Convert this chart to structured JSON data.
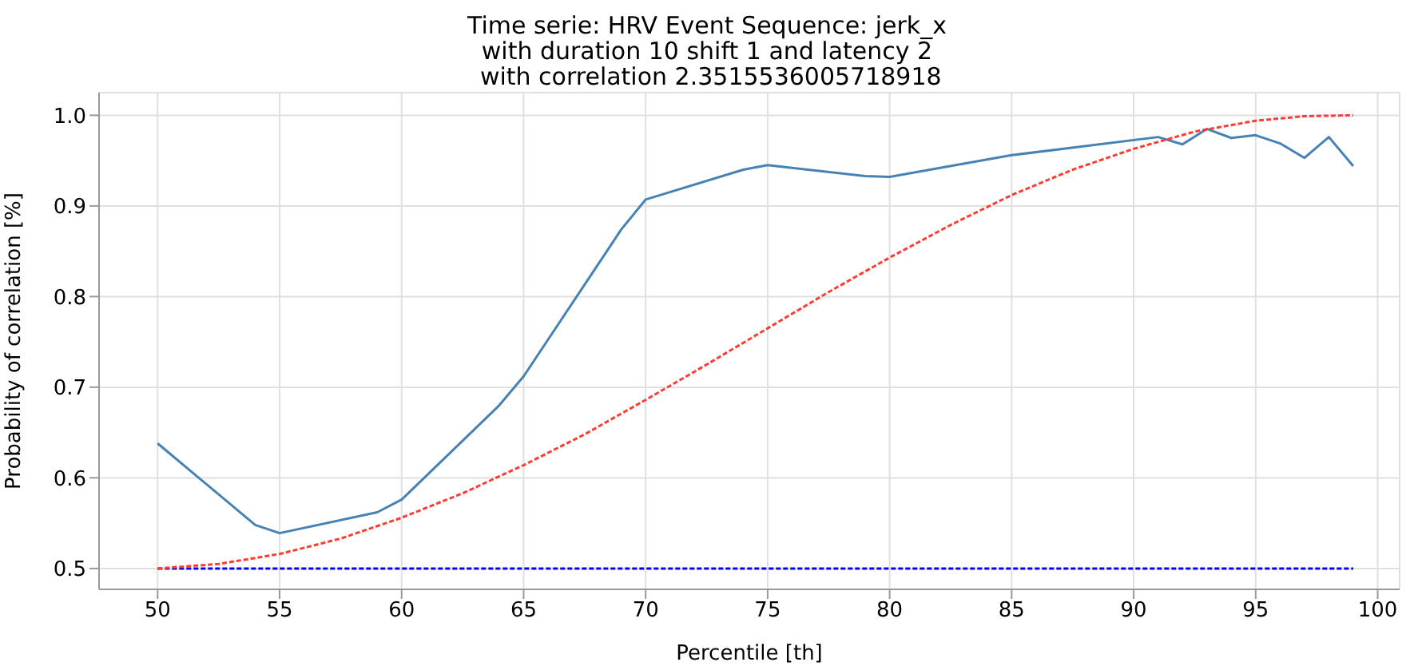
{
  "chart_data": {
    "type": "line",
    "title": "Time serie: HRV Event Sequence: jerk_x\nwith duration 10 shift 1 and latency 2\n with correlation 2.3515536005718918",
    "xlabel": "Percentile [th]",
    "ylabel": "Probability of correlation [%]",
    "xlim": [
      47.6,
      100.9
    ],
    "xticks": [
      50,
      55,
      60,
      65,
      70,
      75,
      80,
      85,
      90,
      95,
      100
    ],
    "ylim": [
      0.477,
      1.025
    ],
    "yticks": [
      0.5,
      0.6,
      0.7,
      0.8,
      0.9,
      {
        "value": 1,
        "label": "1.0"
      }
    ],
    "grid": true,
    "series": [
      {
        "color": "#4682b4",
        "line_style": "solid",
        "x": [
          50,
          54,
          55,
          59,
          60,
          64,
          65,
          69,
          70,
          74,
          75,
          79,
          80,
          85,
          91,
          92,
          93,
          94,
          95,
          96,
          97,
          98,
          99
        ],
        "values": [
          0.638,
          0.548,
          0.539,
          0.562,
          0.576,
          0.68,
          0.712,
          0.874,
          0.907,
          0.94,
          0.945,
          0.933,
          0.932,
          0.956,
          0.976,
          0.968,
          0.985,
          0.975,
          0.978,
          0.969,
          0.953,
          0.976,
          0.944
        ]
      },
      {
        "color": "#0000ff",
        "line_style": "dashed",
        "x": [
          50,
          99
        ],
        "values": [
          0.5,
          0.5
        ]
      },
      {
        "color": "#ff3c32",
        "line_style": "dashed",
        "x": [
          50,
          52.5,
          55,
          57.5,
          60,
          62.5,
          65,
          67.5,
          70,
          72.5,
          75,
          77.5,
          80,
          82.5,
          85,
          87.5,
          90,
          92.5,
          95,
          97,
          99
        ],
        "values": [
          0.5,
          0.505,
          0.516,
          0.533,
          0.556,
          0.583,
          0.614,
          0.648,
          0.686,
          0.725,
          0.765,
          0.805,
          0.843,
          0.879,
          0.912,
          0.94,
          0.963,
          0.982,
          0.994,
          0.999,
          1.0
        ]
      }
    ]
  }
}
